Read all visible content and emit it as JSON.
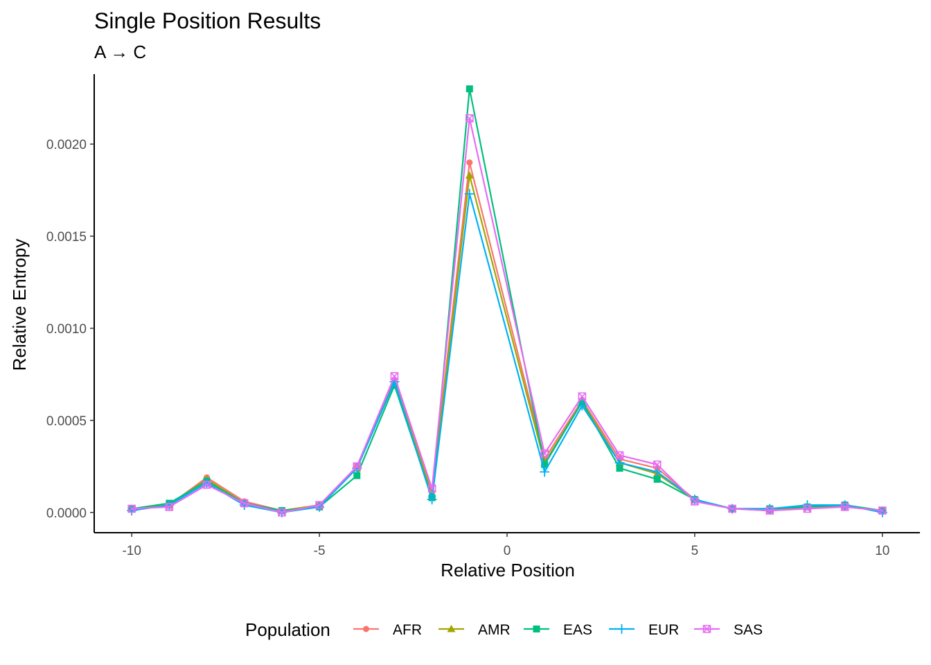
{
  "chart_data": {
    "type": "line",
    "title": "Single Position Results",
    "subtitle": "A → C",
    "xlabel": "Relative Position",
    "ylabel": "Relative Entropy",
    "xlim": [
      -11,
      11
    ],
    "ylim": [
      -0.00011,
      0.00238
    ],
    "x_ticks": [
      -10,
      -5,
      0,
      5,
      10
    ],
    "x_tick_labels": [
      "-10",
      "-5",
      "0",
      "5",
      "10"
    ],
    "y_ticks": [
      0,
      0.0005,
      0.001,
      0.0015,
      0.002
    ],
    "y_tick_labels": [
      "0.0000",
      "0.0005",
      "0.0010",
      "0.0015",
      "0.0020"
    ],
    "grid": false,
    "legend": {
      "title": "Population",
      "position": "bottom"
    },
    "x": [
      -10,
      -9,
      -8,
      -7,
      -6,
      -5,
      -4,
      -3,
      -2,
      -1,
      1,
      2,
      3,
      4,
      5,
      6,
      7,
      8,
      9,
      10
    ],
    "series": [
      {
        "name": "AFR",
        "color": "#F8766D",
        "marker": "circle",
        "values": [
          2e-05,
          4e-05,
          0.00019,
          6e-05,
          1e-05,
          4e-05,
          0.00025,
          0.00072,
          0.00011,
          0.0019,
          0.00029,
          0.00061,
          0.00029,
          0.00024,
          7e-05,
          2e-05,
          1e-05,
          3e-05,
          3e-05,
          1e-05
        ]
      },
      {
        "name": "AMR",
        "color": "#A3A500",
        "marker": "triangle",
        "values": [
          2e-05,
          4e-05,
          0.00018,
          5e-05,
          1e-05,
          4e-05,
          0.00024,
          0.00071,
          0.0001,
          0.00183,
          0.00027,
          0.0006,
          0.00027,
          0.00021,
          7e-05,
          2e-05,
          2e-05,
          3e-05,
          4e-05,
          1e-05
        ]
      },
      {
        "name": "EAS",
        "color": "#00BF7D",
        "marker": "square",
        "values": [
          2e-05,
          5e-05,
          0.00017,
          5e-05,
          1e-05,
          3e-05,
          0.0002,
          0.00069,
          8e-05,
          0.0023,
          0.00026,
          0.0006,
          0.00024,
          0.00018,
          7e-05,
          2e-05,
          2e-05,
          3e-05,
          4e-05,
          1e-05
        ]
      },
      {
        "name": "EUR",
        "color": "#00B0F6",
        "marker": "plus",
        "values": [
          1e-05,
          4e-05,
          0.00016,
          4e-05,
          0.0,
          3e-05,
          0.00024,
          0.00071,
          7e-05,
          0.00173,
          0.00022,
          0.00058,
          0.00027,
          0.00022,
          7e-05,
          2e-05,
          2e-05,
          4e-05,
          4e-05,
          0.0
        ]
      },
      {
        "name": "SAS",
        "color": "#E76BF3",
        "marker": "square-x",
        "values": [
          2e-05,
          3e-05,
          0.00015,
          5e-05,
          0.0,
          4e-05,
          0.00025,
          0.00074,
          0.00013,
          0.00214,
          0.00032,
          0.00063,
          0.00031,
          0.00026,
          6e-05,
          2e-05,
          1e-05,
          2e-05,
          3e-05,
          1e-05
        ]
      }
    ]
  }
}
